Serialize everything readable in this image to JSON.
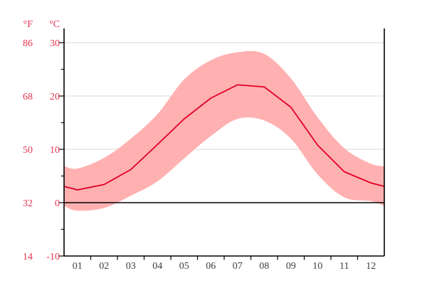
{
  "chart_data": {
    "type": "line",
    "title": "",
    "subtitle": "",
    "legend": "none",
    "grid": "horizontal gridlines at 10, 20, 30 °C; solid black line at 0 °C",
    "categories": [
      "01",
      "02",
      "03",
      "04",
      "05",
      "06",
      "07",
      "08",
      "09",
      "10",
      "11",
      "12"
    ],
    "series": [
      {
        "name": "mean_temperature_c",
        "values": [
          2.4,
          3.4,
          6.2,
          10.9,
          15.7,
          19.6,
          22.1,
          21.7,
          17.9,
          10.8,
          5.8,
          3.7
        ]
      },
      {
        "name": "avg_min_temperature_c",
        "values": [
          -1.5,
          -1.0,
          1.3,
          4.0,
          8.3,
          12.5,
          15.7,
          15.4,
          12.0,
          5.3,
          1.0,
          0.3
        ]
      },
      {
        "name": "avg_max_temperature_c",
        "values": [
          6.4,
          8.4,
          12.0,
          16.6,
          23.1,
          26.7,
          28.2,
          27.9,
          23.3,
          16.0,
          10.2,
          7.3
        ]
      }
    ],
    "band": {
      "between": [
        "avg_min_temperature_c",
        "avg_max_temperature_c"
      ]
    },
    "ylim_c": [
      -10,
      32.7
    ],
    "y_axis": {
      "f_unit": "°F",
      "c_unit": "°C",
      "rows": [
        {
          "f": "86",
          "c": "30",
          "celsius": 30
        },
        {
          "f": "68",
          "c": "20",
          "celsius": 20
        },
        {
          "f": "50",
          "c": "10",
          "celsius": 10
        },
        {
          "f": "32",
          "c": "0",
          "celsius": 0
        },
        {
          "f": "14",
          "c": "-10",
          "celsius": -10
        }
      ],
      "minor_ticks_celsius": [
        25,
        15,
        5,
        -5
      ],
      "gridline_celsius": [
        30,
        20,
        10
      ],
      "zero_line_celsius": 0
    },
    "colors": {
      "band": "#ffb0b0",
      "mean_line": "#e00026",
      "axis_tick_label_red": "#e8334e",
      "month_label": "#3d3d3d",
      "gridline": "#d9d9d9",
      "axis": "#000000",
      "zero_line": "#000000",
      "background": "#ffffff"
    }
  }
}
